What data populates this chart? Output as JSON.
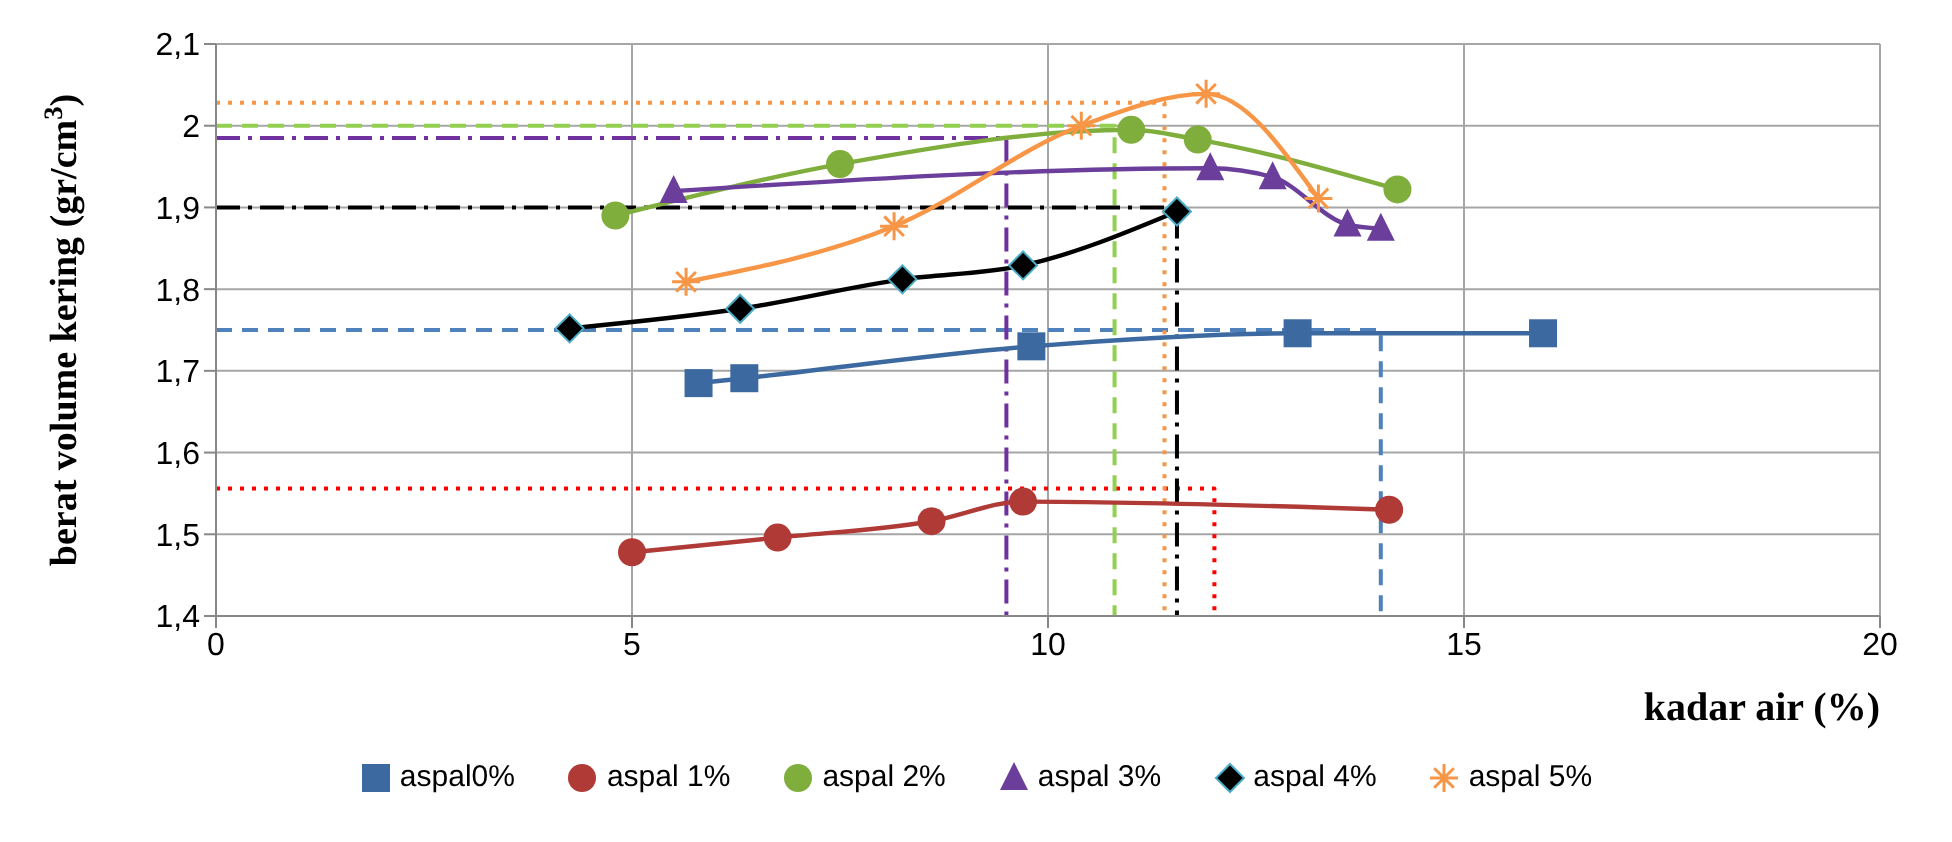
{
  "chart_data": {
    "type": "line",
    "xlabel": "kadar air (%)",
    "ylabel": "berat volume kering (gr/cm$^{3}$)",
    "xlim": [
      0,
      20
    ],
    "xticks": [
      0,
      5,
      10,
      15,
      20
    ],
    "ylim": [
      1.4,
      2.1
    ],
    "yticks": [
      {
        "value": 1.4,
        "label": "1,4"
      },
      {
        "value": 1.5,
        "label": "1,5"
      },
      {
        "value": 1.6,
        "label": "1,6"
      },
      {
        "value": 1.7,
        "label": "1,7"
      },
      {
        "value": 1.8,
        "label": "1,8"
      },
      {
        "value": 1.9,
        "label": "1,9"
      },
      {
        "value": 2.0,
        "label": "2"
      },
      {
        "value": 2.1,
        "label": "2,1"
      }
    ],
    "grid": true,
    "legend": "bottom",
    "series": [
      {
        "name": "aspal0%",
        "color": "#3c6aa0",
        "marker": "square",
        "x": [
          5.8,
          6.35,
          9.8,
          13.0,
          15.95
        ],
        "values": [
          1.685,
          1.691,
          1.73,
          1.746,
          1.746
        ]
      },
      {
        "name": "aspal 1%",
        "color": "#b03a36",
        "marker": "circle",
        "x": [
          5.0,
          6.75,
          8.6,
          9.7,
          14.1
        ],
        "values": [
          1.478,
          1.496,
          1.516,
          1.54,
          1.53
        ]
      },
      {
        "name": "aspal 2%",
        "color": "#7fae3c",
        "marker": "circle",
        "x": [
          4.8,
          7.5,
          11.0,
          11.8,
          14.2
        ],
        "values": [
          1.89,
          1.953,
          1.995,
          1.983,
          1.922
        ]
      },
      {
        "name": "aspal 3%",
        "color": "#6a3e9a",
        "marker": "triangle",
        "x": [
          5.5,
          11.95,
          12.7,
          13.6,
          14.0
        ],
        "values": [
          1.92,
          1.948,
          1.937,
          1.879,
          1.874
        ]
      },
      {
        "name": "aspal 4%",
        "color": "#000000",
        "marker": "diamond",
        "x": [
          4.25,
          6.3,
          8.25,
          9.7,
          11.55
        ],
        "values": [
          1.752,
          1.776,
          1.812,
          1.829,
          1.895
        ]
      },
      {
        "name": "aspal 5%",
        "color": "#f79646",
        "marker": "cross",
        "x": [
          5.65,
          8.15,
          10.4,
          11.9,
          13.25
        ],
        "values": [
          1.809,
          1.877,
          2.0,
          2.039,
          1.911
        ]
      },
      {
        "color": "#4f81bd",
        "marker": "none",
        "line_style": "dashed",
        "x": [
          0,
          14.0,
          14.0
        ],
        "values": [
          1.75,
          1.75,
          1.4
        ]
      },
      {
        "color": "#ff0000",
        "marker": "none",
        "line_style": "dotted",
        "x": [
          0,
          12.0,
          12.0
        ],
        "values": [
          1.556,
          1.556,
          1.4
        ]
      },
      {
        "color": "#92d050",
        "marker": "none",
        "line_style": "dashed",
        "x": [
          0,
          10.8,
          10.8
        ],
        "values": [
          2.0,
          2.0,
          1.4
        ]
      },
      {
        "color": "#7030a0",
        "marker": "none",
        "line_style": "dashdot",
        "x": [
          0,
          9.5,
          9.5
        ],
        "values": [
          1.985,
          1.985,
          1.4
        ]
      },
      {
        "color": "#000000",
        "marker": "none",
        "line_style": "dashdot",
        "x": [
          0,
          11.55,
          11.55
        ],
        "values": [
          1.9,
          1.9,
          1.4
        ]
      },
      {
        "color": "#f79646",
        "marker": "none",
        "line_style": "dotted",
        "x": [
          0,
          11.4,
          11.4
        ],
        "values": [
          2.028,
          2.028,
          1.4
        ]
      }
    ]
  }
}
